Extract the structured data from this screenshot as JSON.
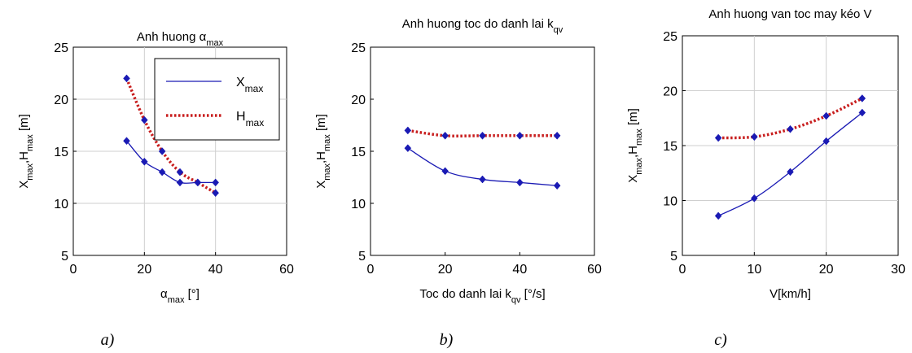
{
  "chart_data": [
    {
      "type": "line",
      "title": "Anh huong α_max",
      "xlabel": "α_max [°]",
      "ylabel": "X_max,H_max [m]",
      "xlim": [
        0,
        60
      ],
      "ylim": [
        5,
        25
      ],
      "xticks": [
        0,
        20,
        40,
        60
      ],
      "yticks": [
        5,
        10,
        15,
        20,
        25
      ],
      "grid": true,
      "legend": "top-right",
      "caption": "a)",
      "series": [
        {
          "name": "X_max",
          "color": "#1a1ab4",
          "style": "solid",
          "x": [
            15,
            20,
            25,
            30,
            35,
            40
          ],
          "y": [
            16,
            14,
            13,
            12,
            12,
            12
          ]
        },
        {
          "name": "H_max",
          "color": "#c81e1e",
          "style": "dotted",
          "x": [
            15,
            20,
            25,
            30,
            35,
            40
          ],
          "y": [
            22,
            18,
            15,
            13,
            12,
            11
          ]
        }
      ]
    },
    {
      "type": "line",
      "title": "Anh huong toc do danh lai k_qv",
      "xlabel": "Toc do danh lai k_qv [°/s]",
      "ylabel": "X_max,H_max [m]",
      "xlim": [
        0,
        60
      ],
      "ylim": [
        5,
        25
      ],
      "xticks": [
        0,
        20,
        40,
        60
      ],
      "yticks": [
        5,
        10,
        15,
        20,
        25
      ],
      "grid": false,
      "caption": "b)",
      "series": [
        {
          "color": "#1a1ab4",
          "style": "solid",
          "x": [
            10,
            20,
            30,
            40,
            50
          ],
          "y": [
            15.3,
            13.1,
            12.3,
            12.0,
            11.7
          ]
        },
        {
          "color": "#c81e1e",
          "style": "dotted",
          "x": [
            10,
            20,
            30,
            40,
            50
          ],
          "y": [
            17.0,
            16.5,
            16.5,
            16.5,
            16.5
          ]
        }
      ]
    },
    {
      "type": "line",
      "title": "Anh huong van toc may kéo V",
      "xlabel": "V[km/h]",
      "ylabel": "X_max,H_max [m]",
      "xlim": [
        0,
        30
      ],
      "ylim": [
        5,
        25
      ],
      "xticks": [
        0,
        10,
        20,
        30
      ],
      "yticks": [
        5,
        10,
        15,
        20,
        25
      ],
      "grid": true,
      "caption": "c)",
      "series": [
        {
          "color": "#1a1ab4",
          "style": "solid",
          "x": [
            5,
            10,
            15,
            20,
            25
          ],
          "y": [
            8.6,
            10.2,
            12.6,
            15.4,
            18.0
          ]
        },
        {
          "color": "#c81e1e",
          "style": "dotted",
          "x": [
            5,
            10,
            15,
            20,
            25
          ],
          "y": [
            15.7,
            15.8,
            16.5,
            17.7,
            19.3
          ]
        }
      ]
    }
  ]
}
